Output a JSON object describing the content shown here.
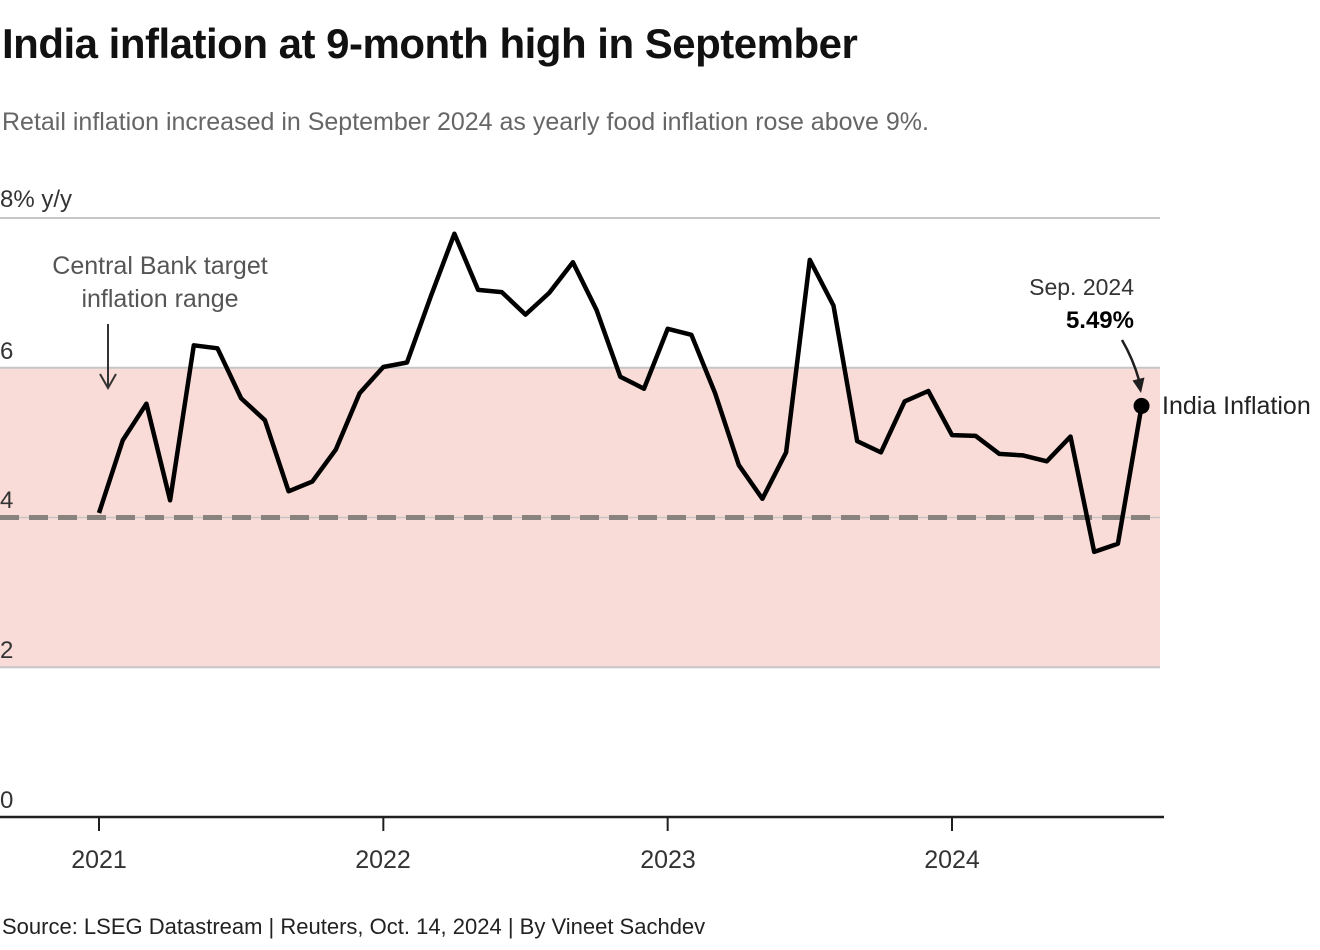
{
  "header": {
    "title": "India inflation at 9-month high in September",
    "subtitle": "Retail inflation increased in September 2024 as yearly food inflation rose above 9%."
  },
  "chart_data": {
    "type": "line",
    "title": "India inflation at 9-month high in September",
    "unit_label": "8% y/y",
    "ylim": [
      0,
      8
    ],
    "yticks": [
      0,
      2,
      4,
      6,
      8
    ],
    "ytick_display": [
      "6",
      "4",
      "2",
      "0"
    ],
    "x_start": "2021-01",
    "x_end": "2024-09",
    "x_frequency": "monthly",
    "x_tick_labels": [
      "2021",
      "2022",
      "2023",
      "2024"
    ],
    "grid": "horizontal",
    "legend": "direct-label",
    "series": [
      {
        "name": "India Inflation",
        "values": [
          4.06,
          5.03,
          5.52,
          4.23,
          6.3,
          6.26,
          5.59,
          5.3,
          4.35,
          4.48,
          4.91,
          5.66,
          6.01,
          6.07,
          6.95,
          7.79,
          7.04,
          7.01,
          6.71,
          7.0,
          7.41,
          6.77,
          5.88,
          5.72,
          6.52,
          6.44,
          5.66,
          4.7,
          4.25,
          4.87,
          7.44,
          6.83,
          5.02,
          4.87,
          5.55,
          5.69,
          5.1,
          5.09,
          4.85,
          4.83,
          4.75,
          5.08,
          3.54,
          3.65,
          5.49
        ]
      }
    ],
    "target_band": {
      "from": 2,
      "to": 6,
      "label": "Central Bank target inflation range"
    },
    "target_midline": 4,
    "last_point": {
      "date_label": "Sep. 2024",
      "value_label": "5.49%",
      "value": 5.49
    }
  },
  "colors": {
    "line": "#000000",
    "band": "#f9dcd7",
    "gridline": "#c6c6c6",
    "dashed_midline": "#8a827e",
    "axis": "#1f1f1f",
    "arrow": "#333333"
  },
  "footer": {
    "source": "Source: LSEG Datastream | Reuters, Oct. 14, 2024 | By Vineet Sachdev"
  }
}
